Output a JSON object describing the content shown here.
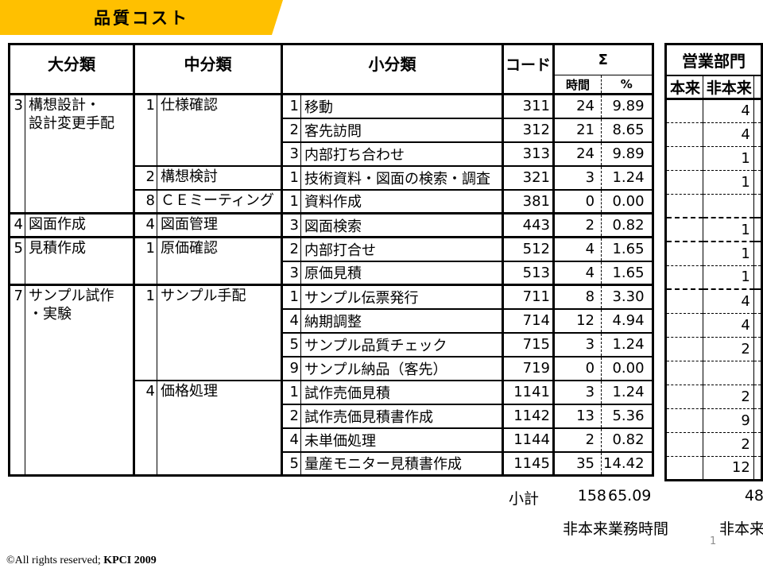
{
  "banner": {
    "title": "品質コスト",
    "bg_color": "#FFC000"
  },
  "table": {
    "headers": {
      "dai": "大分類",
      "chu": "中分類",
      "sho": "小分類",
      "code": "コード",
      "sigma": "Σ",
      "hours": "時間",
      "pct": "%"
    },
    "right_headers": {
      "dept": "営業部門",
      "honrai": "本来",
      "hihonrai": "非本来"
    },
    "rows": [
      {
        "dai": {
          "no": "3",
          "name": "構想設計・\n設計変更手配",
          "span": 5
        },
        "chu": {
          "no": "1",
          "name": "仕様確認",
          "span": 3
        },
        "no": "1",
        "name": "移動",
        "code": "311",
        "hours": "24",
        "pct": "9.89",
        "sales": "4"
      },
      {
        "no": "2",
        "name": "客先訪問",
        "code": "312",
        "hours": "21",
        "pct": "8.65",
        "sales": "4"
      },
      {
        "no": "3",
        "name": "内部打ち合わせ",
        "code": "313",
        "hours": "24",
        "pct": "9.89",
        "sales": "1"
      },
      {
        "chu": {
          "no": "2",
          "name": "構想検討",
          "span": 1
        },
        "no": "1",
        "name": "技術資料・図面の検索・調査",
        "code": "321",
        "hours": "3",
        "pct": "1.24",
        "sales": "1"
      },
      {
        "chu": {
          "no": "8",
          "name": "ＣＥミーティング",
          "span": 1
        },
        "no": "1",
        "name": "資料作成",
        "code": "381",
        "hours": "0",
        "pct": "0.00",
        "sales": ""
      },
      {
        "dai": {
          "no": "4",
          "name": "図面作成",
          "span": 1
        },
        "chu": {
          "no": "4",
          "name": "図面管理",
          "span": 1
        },
        "no": "3",
        "name": "図面検索",
        "code": "443",
        "hours": "2",
        "pct": "0.82",
        "sales": "1"
      },
      {
        "dai": {
          "no": "5",
          "name": "見積作成",
          "span": 2
        },
        "chu": {
          "no": "1",
          "name": "原価確認",
          "span": 2
        },
        "no": "2",
        "name": "内部打合せ",
        "code": "512",
        "hours": "4",
        "pct": "1.65",
        "sales": "1"
      },
      {
        "no": "3",
        "name": "原価見積",
        "code": "513",
        "hours": "4",
        "pct": "1.65",
        "sales": "1"
      },
      {
        "dai": {
          "no": "7",
          "name": "サンプル試作\n・実験",
          "span": 8
        },
        "chu": {
          "no": "1",
          "name": "サンプル手配",
          "span": 4
        },
        "no": "1",
        "name": "サンプル伝票発行",
        "code": "711",
        "hours": "8",
        "pct": "3.30",
        "sales": "4"
      },
      {
        "no": "4",
        "name": "納期調整",
        "code": "714",
        "hours": "12",
        "pct": "4.94",
        "sales": "4"
      },
      {
        "no": "5",
        "name": "サンプル品質チェック",
        "code": "715",
        "hours": "3",
        "pct": "1.24",
        "sales": "2"
      },
      {
        "no": "9",
        "name": "サンプル納品（客先）",
        "code": "719",
        "hours": "0",
        "pct": "0.00",
        "sales": ""
      },
      {
        "chu": {
          "no": "4",
          "name": "価格処理",
          "span": 4
        },
        "no": "1",
        "name": "試作売価見積",
        "code": "1141",
        "hours": "3",
        "pct": "1.24",
        "sales": "2"
      },
      {
        "no": "2",
        "name": "試作売価見積書作成",
        "code": "1142",
        "hours": "13",
        "pct": "5.36",
        "sales": "9"
      },
      {
        "no": "4",
        "name": "未単価処理",
        "code": "1144",
        "hours": "2",
        "pct": "0.82",
        "sales": "2"
      },
      {
        "no": "5",
        "name": "量産モニター見積書作成",
        "code": "1145",
        "hours": "35",
        "pct": "14.42",
        "sales": "12"
      }
    ],
    "subtotal": {
      "label": "小計",
      "hours": "158",
      "pct": "65.09",
      "sales": "48"
    },
    "note_left": "非本来業務時間",
    "note_right": "非本来業務時間"
  },
  "page_number": "1",
  "copyright": {
    "prefix": "©All rights reserved; ",
    "bold": "KPCI 2009"
  }
}
